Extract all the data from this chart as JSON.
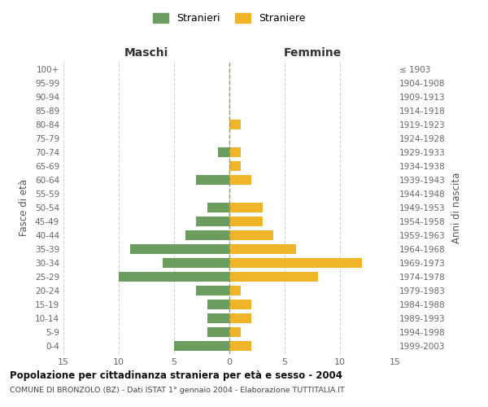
{
  "age_groups": [
    "0-4",
    "5-9",
    "10-14",
    "15-19",
    "20-24",
    "25-29",
    "30-34",
    "35-39",
    "40-44",
    "45-49",
    "50-54",
    "55-59",
    "60-64",
    "65-69",
    "70-74",
    "75-79",
    "80-84",
    "85-89",
    "90-94",
    "95-99",
    "100+"
  ],
  "birth_years": [
    "1999-2003",
    "1994-1998",
    "1989-1993",
    "1984-1988",
    "1979-1983",
    "1974-1978",
    "1969-1973",
    "1964-1968",
    "1959-1963",
    "1954-1958",
    "1949-1953",
    "1944-1948",
    "1939-1943",
    "1934-1938",
    "1929-1933",
    "1924-1928",
    "1919-1923",
    "1914-1918",
    "1909-1913",
    "1904-1908",
    "≤ 1903"
  ],
  "males": [
    5,
    2,
    2,
    2,
    3,
    10,
    6,
    9,
    4,
    3,
    2,
    0,
    3,
    0,
    1,
    0,
    0,
    0,
    0,
    0,
    0
  ],
  "females": [
    2,
    1,
    2,
    2,
    1,
    8,
    12,
    6,
    4,
    3,
    3,
    0,
    2,
    1,
    1,
    0,
    1,
    0,
    0,
    0,
    0
  ],
  "male_color": "#6b9e5e",
  "female_color": "#f0b429",
  "title": "Popolazione per cittadinanza straniera per età e sesso - 2004",
  "subtitle": "COMUNE DI BRONZOLO (BZ) - Dati ISTAT 1° gennaio 2004 - Elaborazione TUTTITALIA.IT",
  "xlabel_left": "Maschi",
  "xlabel_right": "Femmine",
  "ylabel_left": "Fasce di età",
  "ylabel_right": "Anni di nascita",
  "legend_male": "Stranieri",
  "legend_female": "Straniere",
  "xlim": 15,
  "background_color": "#ffffff",
  "grid_color": "#cccccc"
}
